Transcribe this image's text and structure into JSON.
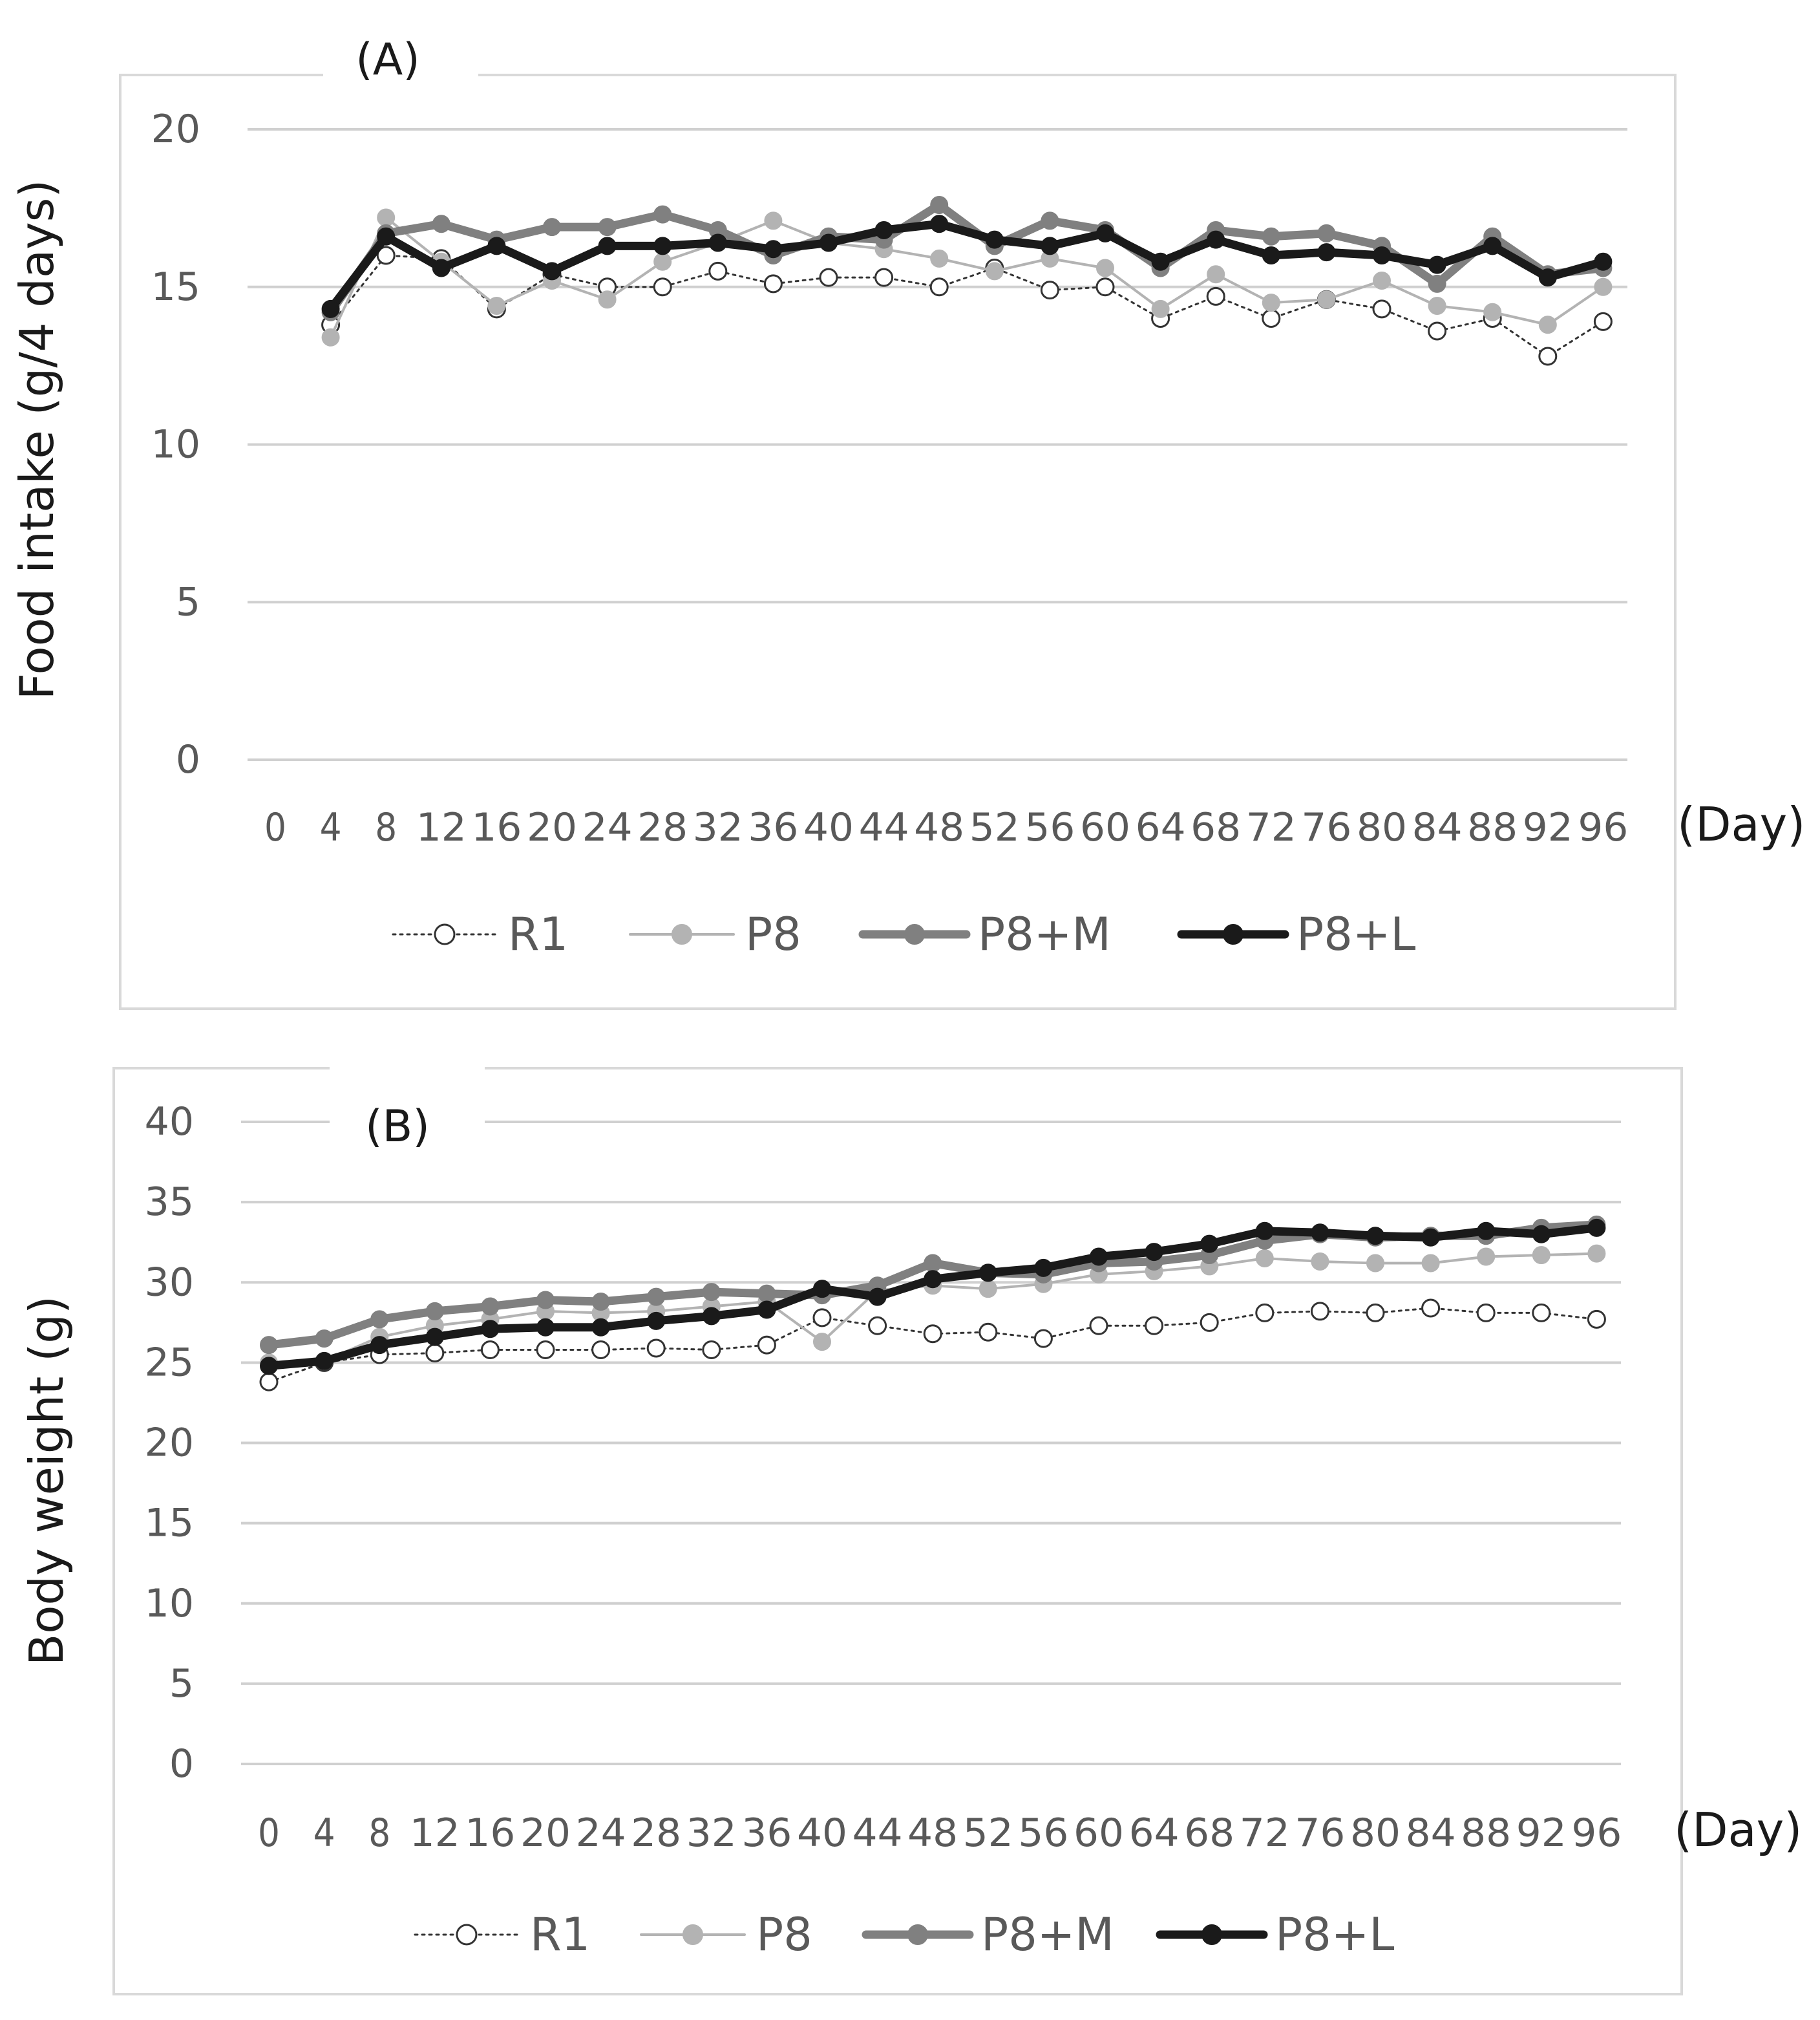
{
  "chart_data": [
    {
      "type": "line",
      "panel_label": "(A)",
      "ylabel": "Food intake (g/4 days)",
      "xlabel": "(Day)",
      "ylim": [
        0,
        20
      ],
      "y_ticks": [
        0,
        5,
        10,
        15,
        20
      ],
      "x_tick_labels": [
        "0",
        "4",
        "8",
        "12",
        "16",
        "20",
        "24",
        "28",
        "32",
        "36",
        "40",
        "44",
        "48",
        "52",
        "56",
        "60",
        "64",
        "68",
        "72",
        "76",
        "80",
        "84",
        "88",
        "92",
        "96"
      ],
      "grid": "horizontal",
      "legend": "bottom",
      "series": [
        {
          "name": "R1",
          "color": "#333333",
          "marker": "open-circle",
          "line": "dotted",
          "points": [
            [
              4,
              13.8
            ],
            [
              8,
              16.0
            ],
            [
              12,
              15.9
            ],
            [
              16,
              14.3
            ],
            [
              20,
              15.4
            ],
            [
              24,
              15.0
            ],
            [
              28,
              15.0
            ],
            [
              32,
              15.5
            ],
            [
              36,
              15.1
            ],
            [
              40,
              15.3
            ],
            [
              44,
              15.3
            ],
            [
              48,
              15.0
            ],
            [
              52,
              15.6
            ],
            [
              56,
              14.9
            ],
            [
              60,
              15.0
            ],
            [
              64,
              14.0
            ],
            [
              68,
              14.7
            ],
            [
              72,
              14.0
            ],
            [
              76,
              14.6
            ],
            [
              80,
              14.3
            ],
            [
              84,
              13.6
            ],
            [
              88,
              14.0
            ],
            [
              92,
              12.8
            ],
            [
              96,
              13.9
            ]
          ]
        },
        {
          "name": "P8",
          "color": "#b3b3b3",
          "marker": "filled-circle",
          "line": "thin",
          "points": [
            [
              4,
              13.4
            ],
            [
              8,
              17.2
            ],
            [
              12,
              15.8
            ],
            [
              16,
              14.4
            ],
            [
              20,
              15.2
            ],
            [
              24,
              14.6
            ],
            [
              28,
              15.8
            ],
            [
              32,
              16.4
            ],
            [
              36,
              17.1
            ],
            [
              40,
              16.4
            ],
            [
              44,
              16.2
            ],
            [
              48,
              15.9
            ],
            [
              52,
              15.5
            ],
            [
              56,
              15.9
            ],
            [
              60,
              15.6
            ],
            [
              64,
              14.3
            ],
            [
              68,
              15.4
            ],
            [
              72,
              14.5
            ],
            [
              76,
              14.6
            ],
            [
              80,
              15.2
            ],
            [
              84,
              14.4
            ],
            [
              88,
              14.2
            ],
            [
              92,
              13.8
            ],
            [
              96,
              15.0
            ]
          ]
        },
        {
          "name": "P8+M",
          "color": "#808080",
          "marker": "filled-circle",
          "line": "thick",
          "points": [
            [
              4,
              14.2
            ],
            [
              8,
              16.7
            ],
            [
              12,
              17.0
            ],
            [
              16,
              16.5
            ],
            [
              20,
              16.9
            ],
            [
              24,
              16.9
            ],
            [
              28,
              17.3
            ],
            [
              32,
              16.8
            ],
            [
              36,
              16.0
            ],
            [
              40,
              16.6
            ],
            [
              44,
              16.5
            ],
            [
              48,
              17.6
            ],
            [
              52,
              16.3
            ],
            [
              56,
              17.1
            ],
            [
              60,
              16.8
            ],
            [
              64,
              15.6
            ],
            [
              68,
              16.8
            ],
            [
              72,
              16.6
            ],
            [
              76,
              16.7
            ],
            [
              80,
              16.3
            ],
            [
              84,
              15.1
            ],
            [
              88,
              16.6
            ],
            [
              92,
              15.4
            ],
            [
              96,
              15.6
            ]
          ]
        },
        {
          "name": "P8+L",
          "color": "#1a1a1a",
          "marker": "filled-circle",
          "line": "thick",
          "points": [
            [
              4,
              14.3
            ],
            [
              8,
              16.6
            ],
            [
              12,
              15.6
            ],
            [
              16,
              16.3
            ],
            [
              20,
              15.5
            ],
            [
              24,
              16.3
            ],
            [
              28,
              16.3
            ],
            [
              32,
              16.4
            ],
            [
              36,
              16.2
            ],
            [
              40,
              16.4
            ],
            [
              44,
              16.8
            ],
            [
              48,
              17.0
            ],
            [
              52,
              16.5
            ],
            [
              56,
              16.3
            ],
            [
              60,
              16.7
            ],
            [
              64,
              15.8
            ],
            [
              68,
              16.5
            ],
            [
              72,
              16.0
            ],
            [
              76,
              16.1
            ],
            [
              80,
              16.0
            ],
            [
              84,
              15.7
            ],
            [
              88,
              16.3
            ],
            [
              92,
              15.3
            ],
            [
              96,
              15.8
            ]
          ]
        }
      ]
    },
    {
      "type": "line",
      "panel_label": "(B)",
      "ylabel": "Body weight (g)",
      "xlabel": "(Day)",
      "ylim": [
        0,
        40
      ],
      "y_ticks": [
        0,
        5,
        10,
        15,
        20,
        25,
        30,
        35,
        40
      ],
      "x_tick_labels": [
        "0",
        "4",
        "8",
        "12",
        "16",
        "20",
        "24",
        "28",
        "32",
        "36",
        "40",
        "44",
        "48",
        "52",
        "56",
        "60",
        "64",
        "68",
        "72",
        "76",
        "80",
        "84",
        "88",
        "92",
        "96"
      ],
      "grid": "horizontal",
      "legend": "bottom",
      "series": [
        {
          "name": "R1",
          "color": "#333333",
          "marker": "open-circle",
          "line": "dotted",
          "points": [
            [
              0,
              23.8
            ],
            [
              4,
              25.0
            ],
            [
              8,
              25.5
            ],
            [
              12,
              25.6
            ],
            [
              16,
              25.8
            ],
            [
              20,
              25.8
            ],
            [
              24,
              25.8
            ],
            [
              28,
              25.9
            ],
            [
              32,
              25.8
            ],
            [
              36,
              26.1
            ],
            [
              40,
              27.8
            ],
            [
              44,
              27.3
            ],
            [
              48,
              26.8
            ],
            [
              52,
              26.9
            ],
            [
              56,
              26.5
            ],
            [
              60,
              27.3
            ],
            [
              64,
              27.3
            ],
            [
              68,
              27.5
            ],
            [
              72,
              28.1
            ],
            [
              76,
              28.2
            ],
            [
              80,
              28.1
            ],
            [
              84,
              28.4
            ],
            [
              88,
              28.1
            ],
            [
              92,
              28.1
            ],
            [
              96,
              27.7
            ]
          ]
        },
        {
          "name": "P8",
          "color": "#b3b3b3",
          "marker": "filled-circle",
          "line": "thin",
          "points": [
            [
              0,
              25.0
            ],
            [
              4,
              25.1
            ],
            [
              8,
              26.6
            ],
            [
              12,
              27.3
            ],
            [
              16,
              27.7
            ],
            [
              20,
              28.2
            ],
            [
              24,
              28.1
            ],
            [
              28,
              28.2
            ],
            [
              32,
              28.5
            ],
            [
              36,
              28.8
            ],
            [
              40,
              26.3
            ],
            [
              44,
              29.5
            ],
            [
              48,
              29.8
            ],
            [
              52,
              29.6
            ],
            [
              56,
              29.9
            ],
            [
              60,
              30.5
            ],
            [
              64,
              30.7
            ],
            [
              68,
              31.0
            ],
            [
              72,
              31.5
            ],
            [
              76,
              31.3
            ],
            [
              80,
              31.2
            ],
            [
              84,
              31.2
            ],
            [
              88,
              31.6
            ],
            [
              92,
              31.7
            ],
            [
              96,
              31.8
            ]
          ]
        },
        {
          "name": "P8+M",
          "color": "#808080",
          "marker": "filled-circle",
          "line": "thick",
          "points": [
            [
              0,
              26.1
            ],
            [
              4,
              26.5
            ],
            [
              8,
              27.7
            ],
            [
              12,
              28.2
            ],
            [
              16,
              28.5
            ],
            [
              20,
              28.9
            ],
            [
              24,
              28.8
            ],
            [
              28,
              29.1
            ],
            [
              32,
              29.4
            ],
            [
              36,
              29.3
            ],
            [
              40,
              29.2
            ],
            [
              44,
              29.8
            ],
            [
              48,
              31.2
            ],
            [
              52,
              30.6
            ],
            [
              56,
              30.5
            ],
            [
              60,
              31.2
            ],
            [
              64,
              31.3
            ],
            [
              68,
              31.7
            ],
            [
              72,
              32.6
            ],
            [
              76,
              33.0
            ],
            [
              80,
              32.8
            ],
            [
              84,
              32.9
            ],
            [
              88,
              32.9
            ],
            [
              92,
              33.4
            ],
            [
              96,
              33.6
            ]
          ]
        },
        {
          "name": "P8+L",
          "color": "#1a1a1a",
          "marker": "filled-circle",
          "line": "thick",
          "points": [
            [
              0,
              24.8
            ],
            [
              4,
              25.1
            ],
            [
              8,
              26.1
            ],
            [
              12,
              26.6
            ],
            [
              16,
              27.1
            ],
            [
              20,
              27.2
            ],
            [
              24,
              27.2
            ],
            [
              28,
              27.6
            ],
            [
              32,
              27.9
            ],
            [
              36,
              28.3
            ],
            [
              40,
              29.6
            ],
            [
              44,
              29.1
            ],
            [
              48,
              30.2
            ],
            [
              52,
              30.6
            ],
            [
              56,
              30.9
            ],
            [
              60,
              31.6
            ],
            [
              64,
              31.9
            ],
            [
              68,
              32.4
            ],
            [
              72,
              33.2
            ],
            [
              76,
              33.1
            ],
            [
              80,
              32.9
            ],
            [
              84,
              32.8
            ],
            [
              88,
              33.2
            ],
            [
              92,
              33.0
            ],
            [
              96,
              33.4
            ]
          ]
        }
      ]
    }
  ]
}
